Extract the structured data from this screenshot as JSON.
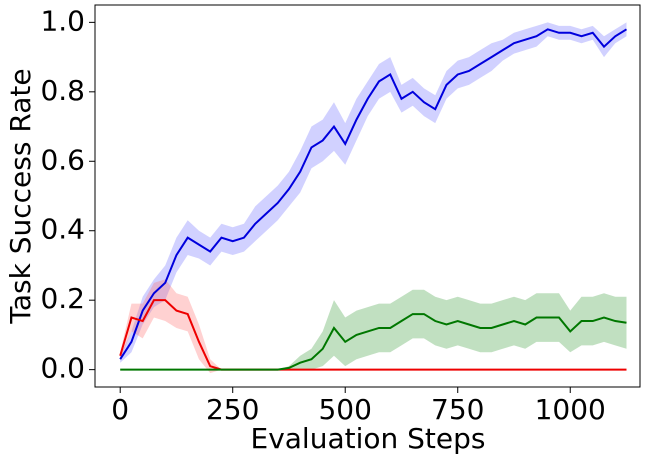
{
  "chart_data": {
    "type": "line",
    "xlabel": "Evaluation Steps",
    "ylabel": "Task Success Rate",
    "x": [
      0,
      25,
      50,
      75,
      100,
      125,
      150,
      175,
      200,
      225,
      250,
      275,
      300,
      325,
      350,
      375,
      400,
      425,
      450,
      475,
      500,
      525,
      550,
      575,
      600,
      625,
      650,
      675,
      700,
      725,
      750,
      775,
      800,
      825,
      850,
      875,
      900,
      925,
      950,
      975,
      1000,
      1025,
      1050,
      1075,
      1100,
      1125
    ],
    "series": [
      {
        "color": "#0000dd",
        "band_color": "#6666ff",
        "values": [
          0.03,
          0.08,
          0.17,
          0.22,
          0.25,
          0.33,
          0.38,
          0.36,
          0.34,
          0.38,
          0.37,
          0.38,
          0.42,
          0.45,
          0.48,
          0.52,
          0.57,
          0.64,
          0.66,
          0.7,
          0.65,
          0.72,
          0.78,
          0.83,
          0.85,
          0.78,
          0.8,
          0.77,
          0.75,
          0.82,
          0.85,
          0.86,
          0.88,
          0.9,
          0.92,
          0.94,
          0.95,
          0.96,
          0.98,
          0.97,
          0.97,
          0.96,
          0.97,
          0.93,
          0.96,
          0.98
        ],
        "error": [
          0.01,
          0.03,
          0.04,
          0.04,
          0.05,
          0.05,
          0.05,
          0.04,
          0.04,
          0.04,
          0.04,
          0.04,
          0.05,
          0.05,
          0.05,
          0.05,
          0.06,
          0.06,
          0.06,
          0.07,
          0.06,
          0.06,
          0.05,
          0.05,
          0.05,
          0.04,
          0.04,
          0.04,
          0.04,
          0.04,
          0.04,
          0.04,
          0.04,
          0.04,
          0.03,
          0.03,
          0.03,
          0.03,
          0.02,
          0.02,
          0.02,
          0.02,
          0.02,
          0.03,
          0.02,
          0.02
        ]
      },
      {
        "color": "#ee0000",
        "band_color": "#ff6666",
        "values": [
          0.04,
          0.15,
          0.14,
          0.2,
          0.2,
          0.17,
          0.16,
          0.08,
          0.01,
          0,
          0,
          0,
          0,
          0,
          0,
          0,
          0,
          0,
          0,
          0,
          0,
          0,
          0,
          0,
          0,
          0,
          0,
          0,
          0,
          0,
          0,
          0,
          0,
          0,
          0,
          0,
          0,
          0,
          0,
          0,
          0,
          0,
          0,
          0,
          0,
          0
        ],
        "error": [
          0.01,
          0.04,
          0.05,
          0.05,
          0.06,
          0.05,
          0.05,
          0.05,
          0.02,
          0,
          0,
          0,
          0,
          0,
          0,
          0,
          0,
          0,
          0,
          0,
          0,
          0,
          0,
          0,
          0,
          0,
          0,
          0,
          0,
          0,
          0,
          0,
          0,
          0,
          0,
          0,
          0,
          0,
          0,
          0,
          0,
          0,
          0,
          0,
          0,
          0
        ]
      },
      {
        "color": "#007700",
        "band_color": "#339933",
        "values": [
          0,
          0,
          0,
          0,
          0,
          0,
          0,
          0,
          0,
          0,
          0,
          0,
          0,
          0,
          0,
          0.005,
          0.02,
          0.03,
          0.06,
          0.12,
          0.08,
          0.1,
          0.11,
          0.12,
          0.12,
          0.14,
          0.16,
          0.16,
          0.14,
          0.13,
          0.14,
          0.13,
          0.12,
          0.12,
          0.13,
          0.14,
          0.13,
          0.15,
          0.15,
          0.15,
          0.11,
          0.14,
          0.14,
          0.15,
          0.14,
          0.135
        ],
        "error": [
          0,
          0,
          0,
          0,
          0,
          0,
          0,
          0,
          0,
          0,
          0,
          0,
          0,
          0,
          0,
          0.005,
          0.02,
          0.03,
          0.05,
          0.08,
          0.07,
          0.07,
          0.07,
          0.07,
          0.07,
          0.07,
          0.07,
          0.07,
          0.07,
          0.07,
          0.07,
          0.07,
          0.07,
          0.07,
          0.07,
          0.07,
          0.07,
          0.07,
          0.07,
          0.07,
          0.06,
          0.07,
          0.07,
          0.07,
          0.07,
          0.075
        ]
      }
    ],
    "xlim": [
      -56,
      1155
    ],
    "ylim": [
      -0.05,
      1.05
    ],
    "xticks": [
      0,
      250,
      500,
      750,
      1000
    ],
    "yticks": [
      {
        "value": 0,
        "label": "0.0"
      },
      0.2,
      0.4,
      0.6,
      0.8,
      {
        "value": 1,
        "label": "1.0"
      }
    ]
  }
}
